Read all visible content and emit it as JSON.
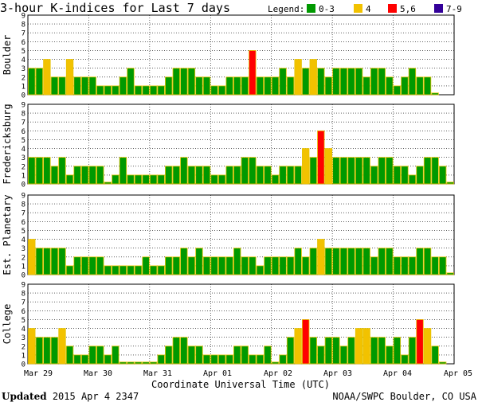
{
  "footer": {
    "updated_label": "Updated",
    "updated_value": " 2015 Apr  4 2347",
    "credit": "NOAA/SWPC Boulder, CO USA"
  },
  "chart_data": {
    "type": "bar",
    "title": "3-hour K-indices for Last 7 days",
    "xlabel": "Coordinate Universal Time (UTC)",
    "x_ticks": [
      "Mar 29",
      "Mar 30",
      "Mar 31",
      "Apr 01",
      "Apr 02",
      "Apr 03",
      "Apr 04",
      "Apr 05"
    ],
    "ylim": [
      0,
      9
    ],
    "y_ticks": [
      0,
      1,
      2,
      3,
      4,
      5,
      6,
      7,
      8,
      9
    ],
    "legend": {
      "label": "Legend:",
      "entries": [
        {
          "label": "0-3",
          "color": "#009900"
        },
        {
          "label": "4",
          "color": "#F2C200"
        },
        {
          "label": "5,6",
          "color": "#FF0000"
        },
        {
          "label": "7-9",
          "color": "#330099"
        }
      ]
    },
    "bar_edge_color": "#E6C200",
    "series": [
      {
        "name": "Boulder",
        "values": [
          3,
          3,
          4,
          2,
          2,
          4,
          2,
          2,
          2,
          1,
          1,
          1,
          2,
          3,
          1,
          1,
          1,
          1,
          2,
          3,
          3,
          3,
          2,
          2,
          1,
          1,
          2,
          2,
          2,
          5,
          2,
          2,
          2,
          3,
          2,
          4,
          3,
          4,
          3,
          2,
          3,
          3,
          3,
          3,
          2,
          3,
          3,
          2,
          1,
          2,
          3,
          2,
          2,
          0.2
        ]
      },
      {
        "name": "Fredericksburg",
        "values": [
          3,
          3,
          3,
          2,
          3,
          1,
          2,
          2,
          2,
          2,
          0.2,
          1,
          3,
          1,
          1,
          1,
          1,
          1,
          2,
          2,
          3,
          2,
          2,
          2,
          1,
          1,
          2,
          2,
          3,
          3,
          2,
          2,
          1,
          2,
          2,
          2,
          4,
          3,
          6,
          4,
          3,
          3,
          3,
          3,
          3,
          2,
          3,
          3,
          2,
          2,
          1,
          2,
          3,
          3,
          2,
          0.2
        ]
      },
      {
        "name": "Est. Planetary",
        "values": [
          4,
          3,
          3,
          3,
          3,
          1,
          2,
          2,
          2,
          2,
          1,
          1,
          1,
          1,
          1,
          2,
          1,
          1,
          2,
          2,
          3,
          2,
          3,
          2,
          2,
          2,
          2,
          3,
          2,
          2,
          1,
          2,
          2,
          2,
          2,
          3,
          2,
          3,
          4,
          3,
          3,
          3,
          3,
          3,
          3,
          2,
          3,
          3,
          2,
          2,
          2,
          3,
          3,
          2,
          2,
          0.2
        ]
      },
      {
        "name": "College",
        "values": [
          4,
          3,
          3,
          3,
          4,
          2,
          1,
          1,
          2,
          2,
          1,
          2,
          0.2,
          0.2,
          0.2,
          0.2,
          0.2,
          1,
          2,
          3,
          3,
          2,
          2,
          1,
          1,
          1,
          1,
          2,
          2,
          1,
          1,
          2,
          0.2,
          1,
          3,
          4,
          5,
          3,
          2,
          3,
          3,
          2,
          3,
          4,
          4,
          3,
          3,
          2,
          3,
          1,
          3,
          5,
          4,
          2,
          0.2
        ]
      }
    ]
  }
}
